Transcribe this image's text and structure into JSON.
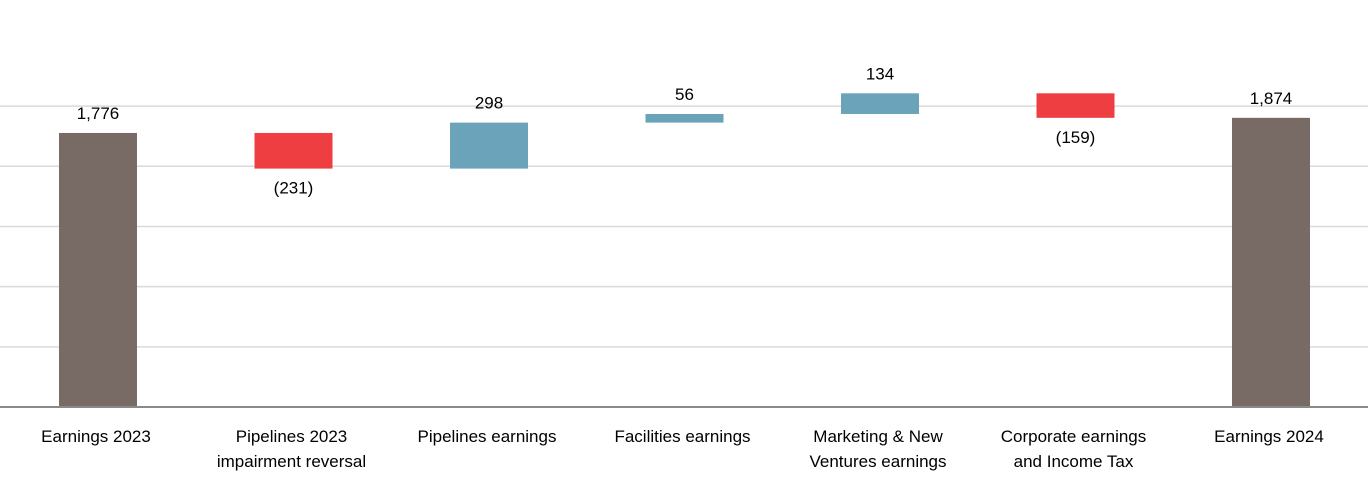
{
  "chart_data": {
    "type": "waterfall",
    "title": "",
    "xlabel": "",
    "ylabel": "",
    "grid": true,
    "categories": [
      [
        "Earnings 2023"
      ],
      [
        "Pipelines 2023",
        "impairment reversal"
      ],
      [
        "Pipelines earnings"
      ],
      [
        "Facilities earnings"
      ],
      [
        "Marketing & New",
        "Ventures earnings"
      ],
      [
        "Corporate earnings",
        "and Income Tax"
      ],
      [
        "Earnings 2024"
      ]
    ],
    "steps": [
      {
        "kind": "total",
        "value": 1776,
        "label": "1,776"
      },
      {
        "kind": "delta",
        "value": -231,
        "label": "(231)"
      },
      {
        "kind": "delta",
        "value": 298,
        "label": "298"
      },
      {
        "kind": "delta",
        "value": 56,
        "label": "56"
      },
      {
        "kind": "delta",
        "value": 134,
        "label": "134"
      },
      {
        "kind": "delta",
        "value": -159,
        "label": "(159)"
      },
      {
        "kind": "total",
        "value": 1874,
        "label": "1,874"
      }
    ],
    "ylim": [
      0,
      2040
    ],
    "gridlines": [
      0,
      390,
      780,
      1170,
      1560,
      1950
    ],
    "colors": {
      "total": "#786a64",
      "increase": "#6ba3bb",
      "decrease": "#ef3e42",
      "grid": "#d9d9d9",
      "axis": "#898989"
    }
  }
}
